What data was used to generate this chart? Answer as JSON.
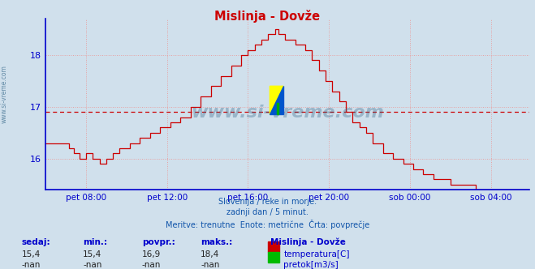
{
  "title": "Mislinja - Dovže",
  "background_color": "#d0e0ec",
  "plot_bg_color": "#d0e0ec",
  "line_color": "#cc0000",
  "avg_line_color": "#cc0000",
  "avg_value": 16.9,
  "y_min": 15.4,
  "y_max": 18.7,
  "y_ticks": [
    16,
    17,
    18
  ],
  "tick_color": "#0000cc",
  "grid_color": "#e8a0a0",
  "axis_color": "#0000cc",
  "title_color": "#cc0000",
  "subtitle_lines": [
    "Slovenija / reke in morje.",
    "zadnji dan / 5 minut.",
    "Meritve: trenutne  Enote: metrične  Črta: povprečje"
  ],
  "watermark": "www.si-vreme.com",
  "stats_sedaj": "15,4",
  "stats_min": "15,4",
  "stats_povpr": "16,9",
  "stats_maks": "18,4",
  "legend_title": "Mislinja - Dovže",
  "legend_temp_label": "temperatura[C]",
  "legend_flow_label": "pretok[m3/s]",
  "temp_color": "#cc0000",
  "flow_color": "#00bb00",
  "x_tick_labels": [
    "pet 08:00",
    "pet 12:00",
    "pet 16:00",
    "pet 20:00",
    "sob 00:00",
    "sob 04:00"
  ],
  "x_tick_positions": [
    24,
    72,
    120,
    168,
    216,
    264
  ]
}
